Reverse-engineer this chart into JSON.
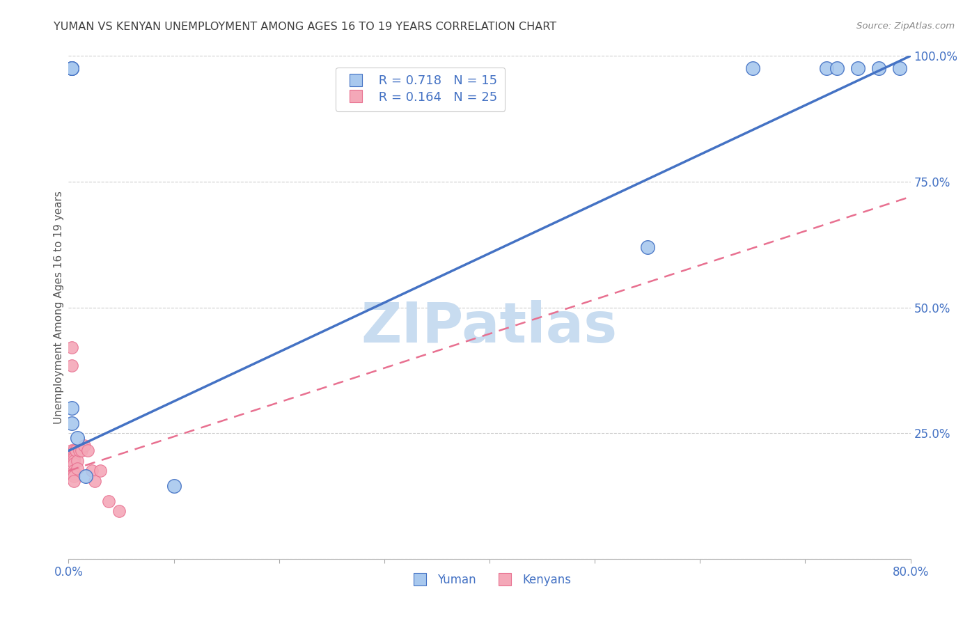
{
  "title": "YUMAN VS KENYAN UNEMPLOYMENT AMONG AGES 16 TO 19 YEARS CORRELATION CHART",
  "source": "Source: ZipAtlas.com",
  "ylabel": "Unemployment Among Ages 16 to 19 years",
  "xlim": [
    0.0,
    0.8
  ],
  "ylim": [
    0.0,
    1.0
  ],
  "xticks": [
    0.0,
    0.1,
    0.2,
    0.3,
    0.4,
    0.5,
    0.6,
    0.7,
    0.8
  ],
  "yticks": [
    0.0,
    0.25,
    0.5,
    0.75,
    1.0
  ],
  "yuman_x": [
    0.003,
    0.003,
    0.003,
    0.003,
    0.003,
    0.008,
    0.016,
    0.1,
    0.55,
    0.65,
    0.72,
    0.73,
    0.75,
    0.77,
    0.79
  ],
  "yuman_y": [
    0.975,
    0.975,
    0.975,
    0.3,
    0.27,
    0.24,
    0.165,
    0.145,
    0.62,
    0.975,
    0.975,
    0.975,
    0.975,
    0.975,
    0.975
  ],
  "kenyan_x": [
    0.003,
    0.003,
    0.003,
    0.005,
    0.005,
    0.005,
    0.005,
    0.005,
    0.005,
    0.005,
    0.005,
    0.005,
    0.005,
    0.007,
    0.008,
    0.008,
    0.01,
    0.012,
    0.015,
    0.018,
    0.022,
    0.025,
    0.03,
    0.038,
    0.048
  ],
  "kenyan_y": [
    0.42,
    0.385,
    0.215,
    0.215,
    0.21,
    0.205,
    0.2,
    0.195,
    0.19,
    0.175,
    0.17,
    0.165,
    0.155,
    0.215,
    0.195,
    0.18,
    0.215,
    0.215,
    0.225,
    0.215,
    0.175,
    0.155,
    0.175,
    0.115,
    0.095
  ],
  "yuman_color": "#A8C8EE",
  "kenyan_color": "#F4A8B8",
  "yuman_line_color": "#4472C4",
  "kenyan_line_color": "#E87090",
  "R_yuman": 0.718,
  "N_yuman": 15,
  "R_kenyan": 0.164,
  "N_kenyan": 25,
  "title_color": "#404040",
  "tick_color": "#4472C4",
  "grid_color": "#CCCCCC",
  "watermark": "ZIPatlas",
  "watermark_color": "#C8DCF0",
  "background_color": "#FFFFFF",
  "yuman_line_x0": 0.0,
  "yuman_line_y0": 0.215,
  "yuman_line_x1": 0.8,
  "yuman_line_y1": 1.0,
  "kenyan_line_x0": 0.0,
  "kenyan_line_y0": 0.175,
  "kenyan_line_x1": 0.8,
  "kenyan_line_y1": 0.72
}
